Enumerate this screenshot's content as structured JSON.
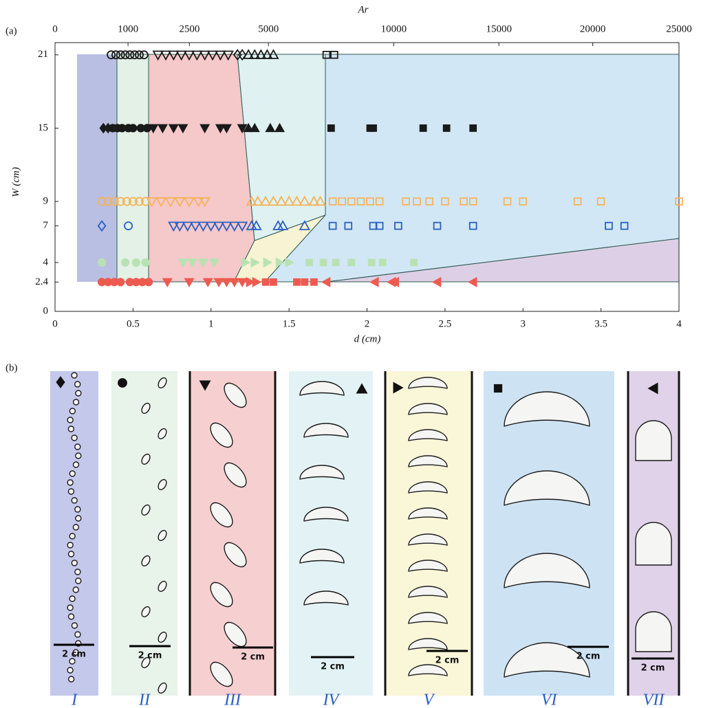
{
  "chart_data": {
    "type": "scatter",
    "panel_label": "(a)",
    "xlabel": "d (cm)",
    "ylabel": "W (cm)",
    "x2label": "Ar",
    "xlim": [
      0,
      4
    ],
    "xticks": [
      0,
      0.5,
      1,
      1.5,
      2,
      2.5,
      3,
      3.5,
      4
    ],
    "ylim": [
      0,
      22
    ],
    "yticks": [
      0,
      2.4,
      4,
      7,
      9,
      15,
      21
    ],
    "x2lim": [
      0,
      25000
    ],
    "x2scale": "power",
    "x2exponent": 1.5,
    "x2ticks": [
      0,
      1000,
      2500,
      5000,
      10000,
      15000,
      20000,
      25000
    ],
    "grid": false,
    "series": [
      {
        "marker": "circle",
        "color": "#1a1a1a",
        "filled": false,
        "x": [
          0.36,
          0.39,
          0.42,
          0.45,
          0.48,
          0.51,
          0.54,
          0.57
        ],
        "values": [
          21,
          21,
          21,
          21,
          21,
          21,
          21,
          21
        ]
      },
      {
        "marker": "down",
        "color": "#1a1a1a",
        "filled": false,
        "x": [
          0.66,
          0.71,
          0.76,
          0.81,
          0.86,
          0.91,
          0.96,
          1.01,
          1.06,
          1.11
        ],
        "values": [
          21,
          21,
          21,
          21,
          21,
          21,
          21,
          21,
          21,
          21
        ]
      },
      {
        "marker": "diamond",
        "color": "#1a1a1a",
        "filled": false,
        "x": [
          1.17,
          1.2
        ],
        "values": [
          21,
          21
        ]
      },
      {
        "marker": "up",
        "color": "#1a1a1a",
        "filled": false,
        "x": [
          1.24,
          1.28,
          1.32,
          1.36,
          1.4
        ],
        "values": [
          21,
          21,
          21,
          21,
          21
        ]
      },
      {
        "marker": "square",
        "color": "#1a1a1a",
        "filled": false,
        "x": [
          1.74,
          1.79
        ],
        "values": [
          21,
          21
        ]
      },
      {
        "marker": "diamond",
        "color": "#1a1a1a",
        "filled": true,
        "x": [
          0.31,
          0.34
        ],
        "values": [
          15,
          15
        ]
      },
      {
        "marker": "circle",
        "color": "#1a1a1a",
        "filled": true,
        "x": [
          0.37,
          0.4,
          0.43,
          0.47,
          0.5,
          0.55,
          0.59
        ],
        "values": [
          15,
          15,
          15,
          15,
          15,
          15,
          15
        ]
      },
      {
        "marker": "down",
        "color": "#1a1a1a",
        "filled": true,
        "x": [
          0.63,
          0.69,
          0.76,
          0.82,
          0.96,
          1.06,
          1.1,
          1.2
        ],
        "values": [
          15,
          15,
          15,
          15,
          15,
          15,
          15,
          15
        ]
      },
      {
        "marker": "up",
        "color": "#1a1a1a",
        "filled": true,
        "x": [
          1.24,
          1.28,
          1.38,
          1.44
        ],
        "values": [
          15,
          15,
          15,
          15
        ]
      },
      {
        "marker": "square",
        "color": "#1a1a1a",
        "filled": true,
        "x": [
          1.77,
          2.02,
          2.04,
          2.36,
          2.51,
          2.68
        ],
        "values": [
          15,
          15,
          15,
          15,
          15,
          15
        ]
      },
      {
        "marker": "circle",
        "color": "#f5b35a",
        "filled": false,
        "x": [
          0.3,
          0.34,
          0.38,
          0.42,
          0.46,
          0.5,
          0.54,
          0.58
        ],
        "values": [
          9,
          9,
          9,
          9,
          9,
          9,
          9,
          9
        ]
      },
      {
        "marker": "down",
        "color": "#f5b35a",
        "filled": false,
        "x": [
          0.62,
          0.68,
          0.74,
          0.8,
          0.86,
          0.92,
          0.96
        ],
        "values": [
          9,
          9,
          9,
          9,
          9,
          9,
          9
        ]
      },
      {
        "marker": "up",
        "color": "#f5b35a",
        "filled": false,
        "x": [
          1.26,
          1.3,
          1.35,
          1.4,
          1.45,
          1.5,
          1.55,
          1.6,
          1.66,
          1.7
        ],
        "values": [
          9,
          9,
          9,
          9,
          9,
          9,
          9,
          9,
          9,
          9
        ]
      },
      {
        "marker": "square",
        "color": "#f5b35a",
        "filled": false,
        "x": [
          1.78,
          1.84,
          1.9,
          1.96,
          2.02,
          2.08,
          2.25,
          2.32,
          2.4,
          2.5,
          2.62,
          2.68,
          2.9,
          3.0,
          3.35,
          3.5,
          4.0
        ],
        "values": [
          9,
          9,
          9,
          9,
          9,
          9,
          9,
          9,
          9,
          9,
          9,
          9,
          9,
          9,
          9,
          9,
          9
        ]
      },
      {
        "marker": "diamond",
        "color": "#2a5fc0",
        "filled": false,
        "x": [
          0.3
        ],
        "values": [
          7
        ]
      },
      {
        "marker": "circle",
        "color": "#2a5fc0",
        "filled": false,
        "x": [
          0.47
        ],
        "values": [
          7
        ]
      },
      {
        "marker": "down",
        "color": "#2a5fc0",
        "filled": false,
        "x": [
          0.76,
          0.8,
          0.85,
          0.9,
          0.95,
          1.0,
          1.05,
          1.1,
          1.15,
          1.2
        ],
        "values": [
          7,
          7,
          7,
          7,
          7,
          7,
          7,
          7,
          7,
          7
        ]
      },
      {
        "marker": "up",
        "color": "#2a5fc0",
        "filled": false,
        "x": [
          1.26,
          1.29,
          1.43,
          1.46,
          1.6
        ],
        "values": [
          7,
          7,
          7,
          7,
          7
        ]
      },
      {
        "marker": "square",
        "color": "#2a5fc0",
        "filled": false,
        "x": [
          1.78,
          1.88,
          2.04,
          2.08,
          2.2,
          2.45,
          2.68,
          3.55,
          3.65
        ],
        "values": [
          7,
          7,
          7,
          7,
          7,
          7,
          7,
          7,
          7
        ]
      },
      {
        "marker": "circle",
        "color": "#b9e2b3",
        "filled": true,
        "x": [
          0.3,
          0.45,
          0.52,
          0.58
        ],
        "values": [
          4,
          4,
          4,
          4
        ]
      },
      {
        "marker": "down",
        "color": "#b9e2b3",
        "filled": true,
        "x": [
          0.82,
          0.88,
          0.95,
          1.02
        ],
        "values": [
          4,
          4,
          4,
          4
        ]
      },
      {
        "marker": "right",
        "color": "#b9e2b3",
        "filled": true,
        "x": [
          1.22,
          1.28,
          1.36,
          1.44,
          1.5
        ],
        "values": [
          4,
          4,
          4,
          4,
          4
        ]
      },
      {
        "marker": "square",
        "color": "#b9e2b3",
        "filled": true,
        "x": [
          1.63,
          1.72,
          1.8,
          1.9,
          2.03,
          2.1,
          2.3
        ],
        "values": [
          4,
          4,
          4,
          4,
          4,
          4,
          4
        ]
      },
      {
        "marker": "circle",
        "color": "#ee5a4f",
        "filled": true,
        "x": [
          0.3,
          0.34,
          0.38,
          0.42,
          0.48,
          0.52,
          0.56,
          0.6
        ],
        "values": [
          2.4,
          2.4,
          2.4,
          2.4,
          2.4,
          2.4,
          2.4,
          2.4
        ]
      },
      {
        "marker": "down",
        "color": "#ee5a4f",
        "filled": true,
        "x": [
          0.72,
          0.86,
          0.98,
          1.05,
          1.1,
          1.15,
          1.2
        ],
        "values": [
          2.4,
          2.4,
          2.4,
          2.4,
          2.4,
          2.4,
          2.4
        ]
      },
      {
        "marker": "right",
        "color": "#ee5a4f",
        "filled": true,
        "x": [
          1.25,
          1.29
        ],
        "values": [
          2.4,
          2.4
        ]
      },
      {
        "marker": "square",
        "color": "#ee5a4f",
        "filled": true,
        "x": [
          1.35,
          1.4,
          1.55,
          1.6,
          1.66
        ],
        "values": [
          2.4,
          2.4,
          2.4,
          2.4,
          2.4
        ]
      },
      {
        "marker": "left",
        "color": "#ee5a4f",
        "filled": true,
        "x": [
          1.74,
          2.05,
          2.16,
          2.18,
          2.45,
          2.68
        ],
        "values": [
          2.4,
          2.4,
          2.4,
          2.4,
          2.4,
          2.4
        ]
      }
    ]
  },
  "panel_b": {
    "panel_label": "(b)",
    "panels": [
      {
        "numeral": "I",
        "scale_bar": "2 cm"
      },
      {
        "numeral": "II",
        "scale_bar": "2 cm"
      },
      {
        "numeral": "III",
        "scale_bar": "2 cm"
      },
      {
        "numeral": "IV",
        "scale_bar": "2 cm"
      },
      {
        "numeral": "V",
        "scale_bar": "2 cm"
      },
      {
        "numeral": "VI",
        "scale_bar": "2 cm"
      },
      {
        "numeral": "VII",
        "scale_bar": "2 cm"
      }
    ]
  }
}
